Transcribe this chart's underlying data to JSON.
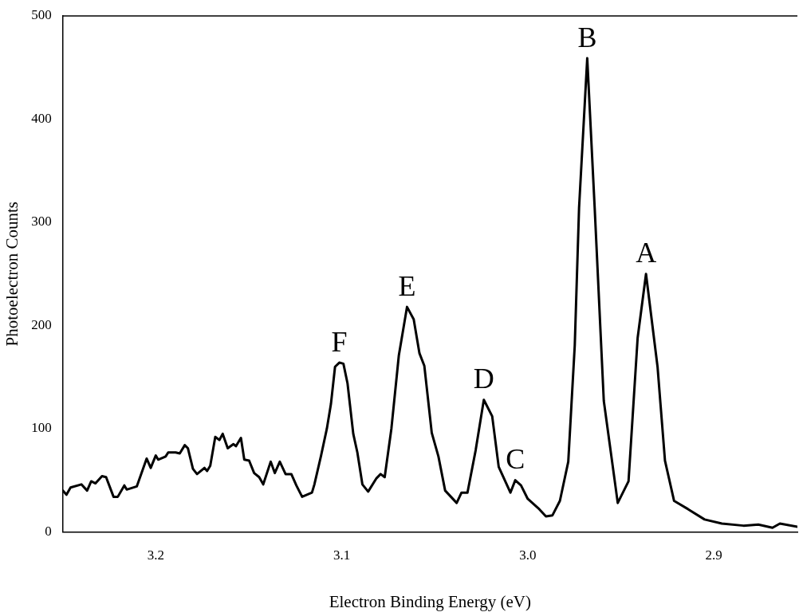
{
  "chart_data": {
    "type": "line",
    "xlabel": "Electron Binding Energy (eV)",
    "ylabel": "Photoelectron Counts",
    "xlim": [
      3.25,
      2.855
    ],
    "xticks": [
      3.2,
      3.1,
      {
        "value": 3,
        "label": "3.0"
      },
      2.9
    ],
    "ylim": [
      0,
      500
    ],
    "yticks": [
      0,
      100,
      200,
      300,
      400,
      500
    ],
    "grid": false,
    "legend": false,
    "marker": "none",
    "line_style": "solid",
    "annotations": [
      {
        "text": "F",
        "x": 3.1013,
        "y": 164
      },
      {
        "text": "E",
        "x": 3.0649,
        "y": 218
      },
      {
        "text": "D",
        "x": 3.0236,
        "y": 128
      },
      {
        "text": "C",
        "x": 3.0067,
        "y": 50
      },
      {
        "text": "B",
        "x": 2.968,
        "y": 459
      },
      {
        "text": "A",
        "x": 2.9364,
        "y": 250
      }
    ],
    "series": [
      {
        "color": "#000000",
        "x": [
          3.25,
          3.248,
          3.2458,
          3.24,
          3.2369,
          3.2347,
          3.2324,
          3.2289,
          3.2267,
          3.2227,
          3.2204,
          3.2169,
          3.2156,
          3.2102,
          3.2049,
          3.2027,
          3.2,
          3.1987,
          3.1947,
          3.1933,
          3.1893,
          3.1871,
          3.1844,
          3.1827,
          3.18,
          3.1778,
          3.1738,
          3.1724,
          3.1707,
          3.168,
          3.1658,
          3.164,
          3.1613,
          3.1582,
          3.1569,
          3.1542,
          3.1524,
          3.1498,
          3.1471,
          3.1444,
          3.1422,
          3.1382,
          3.136,
          3.1333,
          3.1302,
          3.1271,
          3.1244,
          3.1213,
          3.116,
          3.1147,
          3.1111,
          3.108,
          3.1058,
          3.1036,
          3.1013,
          3.0991,
          3.0969,
          3.0938,
          3.0916,
          3.0889,
          3.0858,
          3.0813,
          3.0791,
          3.0769,
          3.0733,
          3.0693,
          3.0649,
          3.0613,
          3.0582,
          3.0556,
          3.0516,
          3.048,
          3.0444,
          3.0413,
          3.0382,
          3.0356,
          3.0324,
          3.028,
          3.0236,
          3.0191,
          3.0156,
          3.0093,
          3.0067,
          3.0036,
          3.0,
          2.9938,
          2.9902,
          2.9867,
          2.9827,
          2.9782,
          2.9747,
          2.9724,
          2.968,
          2.964,
          2.9591,
          2.9516,
          2.9458,
          2.9409,
          2.9364,
          2.9302,
          2.9262,
          2.9213,
          2.9138,
          2.9049,
          2.8956,
          2.884,
          2.876,
          2.8684,
          2.8644,
          2.855
        ],
        "values": [
          40,
          36,
          43,
          46,
          40,
          49,
          47,
          54,
          53,
          34,
          34,
          45,
          41,
          44,
          71,
          62,
          74,
          70,
          73,
          77,
          77,
          76,
          84,
          81,
          61,
          56,
          62,
          59,
          64,
          92,
          89,
          95,
          81,
          85,
          83,
          91,
          70,
          69,
          57,
          53,
          46,
          68,
          57,
          68,
          56,
          56,
          45,
          34,
          38,
          46,
          74,
          100,
          124,
          160,
          164,
          163,
          144,
          95,
          77,
          46,
          39,
          52,
          56,
          53,
          100,
          171,
          218,
          206,
          173,
          161,
          96,
          73,
          40,
          34,
          28,
          38,
          38,
          79,
          128,
          112,
          63,
          38,
          50,
          45,
          32,
          22,
          15,
          16,
          30,
          68,
          181,
          314,
          459,
          314,
          127,
          28,
          49,
          188,
          250,
          160,
          69,
          30,
          22,
          12,
          8,
          6,
          7,
          4,
          8,
          5
        ]
      }
    ]
  }
}
